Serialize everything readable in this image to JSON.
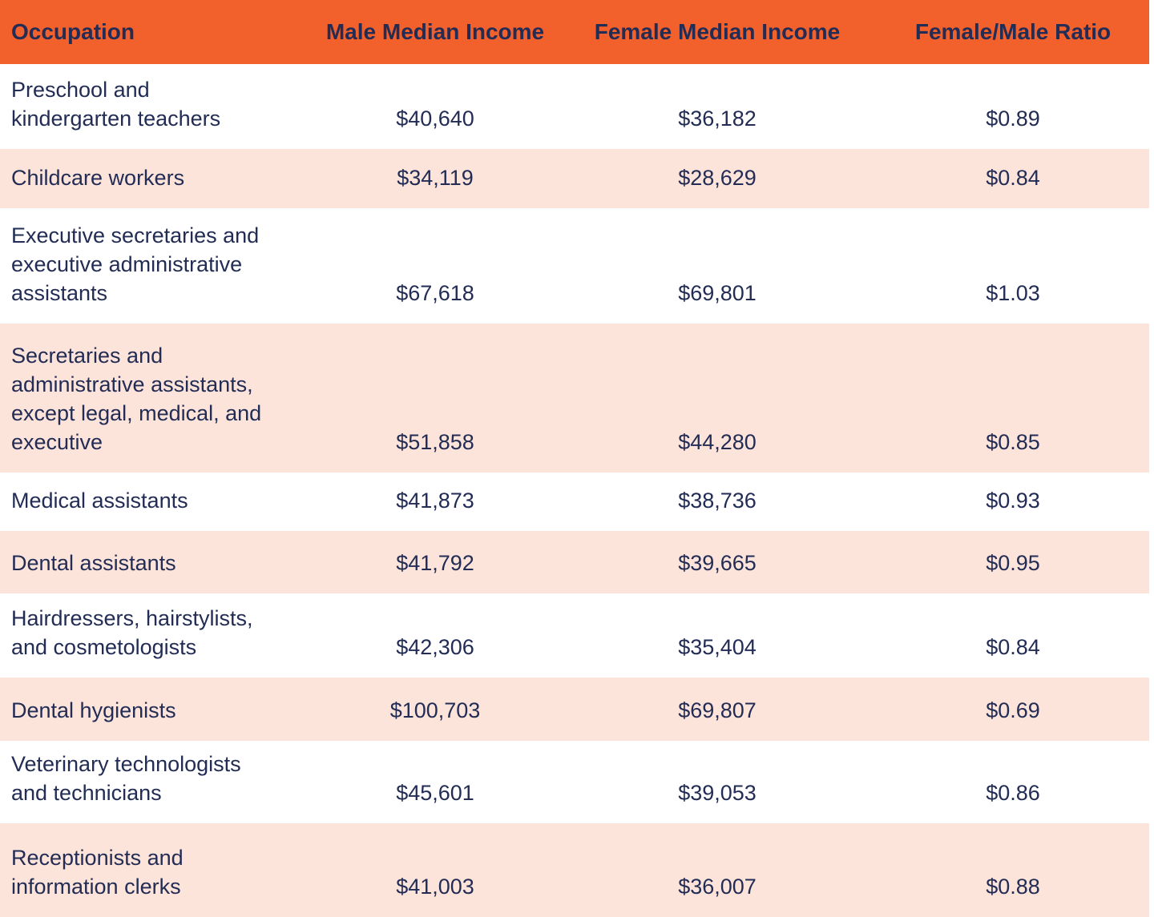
{
  "colors": {
    "header_bg": "#F2602C",
    "row_alt_bg": "#FCE4DA",
    "text": "#222C55",
    "page_bg": "#FFFFFF"
  },
  "chart_data": {
    "type": "table",
    "title": "",
    "columns": [
      "Occupation",
      "Male Median Income",
      "Female Median Income",
      "Female/Male Ratio"
    ],
    "rows": [
      {
        "occupation": "Preschool and\nkindergarten teachers",
        "male_median_income": "$40,640",
        "female_median_income": "$36,182",
        "female_male_ratio": "$0.89"
      },
      {
        "occupation": "Childcare workers",
        "male_median_income": "$34,119",
        "female_median_income": "$28,629",
        "female_male_ratio": "$0.84"
      },
      {
        "occupation": "Executive secretaries and\nexecutive administrative\nassistants",
        "male_median_income": "$67,618",
        "female_median_income": "$69,801",
        "female_male_ratio": "$1.03"
      },
      {
        "occupation": "Secretaries and\nadministrative assistants,\nexcept legal, medical, and\nexecutive",
        "male_median_income": "$51,858",
        "female_median_income": "$44,280",
        "female_male_ratio": "$0.85"
      },
      {
        "occupation": "Medical assistants",
        "male_median_income": "$41,873",
        "female_median_income": "$38,736",
        "female_male_ratio": "$0.93"
      },
      {
        "occupation": "Dental assistants",
        "male_median_income": "$41,792",
        "female_median_income": "$39,665",
        "female_male_ratio": "$0.95"
      },
      {
        "occupation": "Hairdressers, hairstylists,\nand cosmetologists",
        "male_median_income": "$42,306",
        "female_median_income": "$35,404",
        "female_male_ratio": "$0.84"
      },
      {
        "occupation": "Dental hygienists",
        "male_median_income": "$100,703",
        "female_median_income": "$69,807",
        "female_male_ratio": "$0.69"
      },
      {
        "occupation": "Veterinary technologists\nand technicians",
        "male_median_income": "$45,601",
        "female_median_income": "$39,053",
        "female_male_ratio": "$0.86"
      },
      {
        "occupation": "Receptionists and\ninformation clerks",
        "male_median_income": "$41,003",
        "female_median_income": "$36,007",
        "female_male_ratio": "$0.88"
      }
    ]
  }
}
